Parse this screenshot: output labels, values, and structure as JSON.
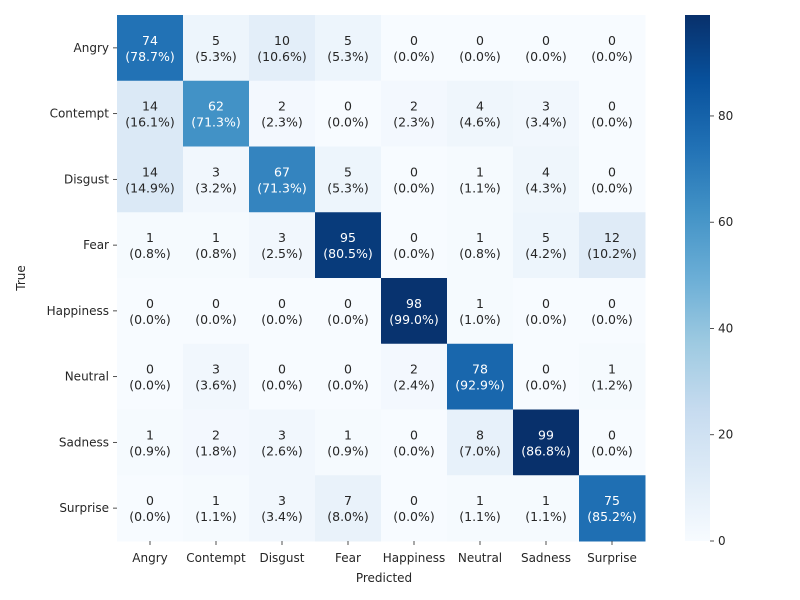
{
  "chart_data": {
    "type": "heatmap",
    "xlabel": "Predicted",
    "ylabel": "True",
    "x_categories": [
      "Angry",
      "Contempt",
      "Disgust",
      "Fear",
      "Happiness",
      "Neutral",
      "Sadness",
      "Surprise"
    ],
    "y_categories": [
      "Angry",
      "Contempt",
      "Disgust",
      "Fear",
      "Happiness",
      "Neutral",
      "Sadness",
      "Surprise"
    ],
    "values": [
      [
        74,
        5,
        10,
        5,
        0,
        0,
        0,
        0
      ],
      [
        14,
        62,
        2,
        0,
        2,
        4,
        3,
        0
      ],
      [
        14,
        3,
        67,
        5,
        0,
        1,
        4,
        0
      ],
      [
        1,
        1,
        3,
        95,
        0,
        1,
        5,
        12
      ],
      [
        0,
        0,
        0,
        0,
        98,
        1,
        0,
        0
      ],
      [
        0,
        3,
        0,
        0,
        2,
        78,
        0,
        1
      ],
      [
        1,
        2,
        3,
        1,
        0,
        8,
        99,
        0
      ],
      [
        0,
        1,
        3,
        7,
        0,
        1,
        1,
        75
      ]
    ],
    "percent_labels": [
      [
        "(78.7%)",
        "(5.3%)",
        "(10.6%)",
        "(5.3%)",
        "(0.0%)",
        "(0.0%)",
        "(0.0%)",
        "(0.0%)"
      ],
      [
        "(16.1%)",
        "(71.3%)",
        "(2.3%)",
        "(0.0%)",
        "(2.3%)",
        "(4.6%)",
        "(3.4%)",
        "(0.0%)"
      ],
      [
        "(14.9%)",
        "(3.2%)",
        "(71.3%)",
        "(5.3%)",
        "(0.0%)",
        "(1.1%)",
        "(4.3%)",
        "(0.0%)"
      ],
      [
        "(0.8%)",
        "(0.8%)",
        "(2.5%)",
        "(80.5%)",
        "(0.0%)",
        "(0.8%)",
        "(4.2%)",
        "(10.2%)"
      ],
      [
        "(0.0%)",
        "(0.0%)",
        "(0.0%)",
        "(0.0%)",
        "(99.0%)",
        "(1.0%)",
        "(0.0%)",
        "(0.0%)"
      ],
      [
        "(0.0%)",
        "(3.6%)",
        "(0.0%)",
        "(0.0%)",
        "(2.4%)",
        "(92.9%)",
        "(0.0%)",
        "(1.2%)"
      ],
      [
        "(0.9%)",
        "(1.8%)",
        "(2.6%)",
        "(0.9%)",
        "(0.0%)",
        "(7.0%)",
        "(86.8%)",
        "(0.0%)"
      ],
      [
        "(0.0%)",
        "(1.1%)",
        "(3.4%)",
        "(8.0%)",
        "(0.0%)",
        "(1.1%)",
        "(1.1%)",
        "(85.2%)"
      ]
    ],
    "colorbar": {
      "vmin": 0,
      "vmax": 99,
      "ticks": [
        0,
        20,
        40,
        60,
        80
      ],
      "colormap": "Blues",
      "low_color": "#f7fbff",
      "high_color": "#08306b"
    },
    "grid": false,
    "legend": "colorbar-right"
  }
}
